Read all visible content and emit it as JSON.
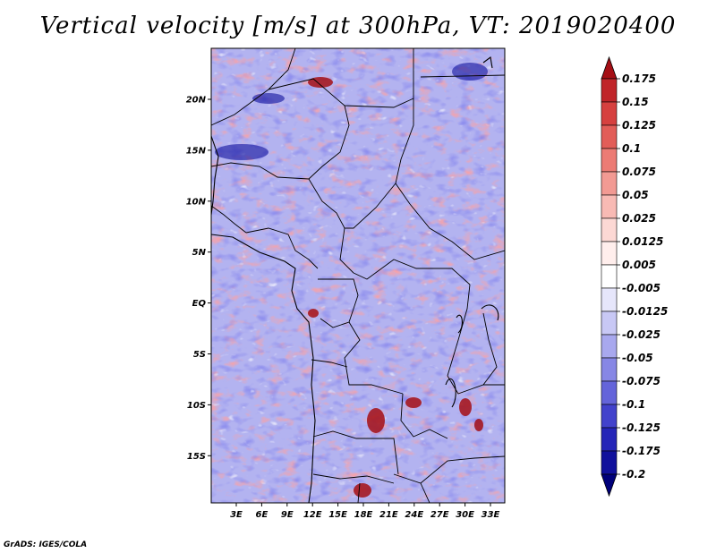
{
  "title": "Vertical velocity [m/s] at 300hPa, VT: 2019020400",
  "credit": "GrADS: IGES/COLA",
  "map": {
    "lat_labels": [
      "20N",
      "15N",
      "10N",
      "5N",
      "EQ",
      "5S",
      "10S",
      "15S"
    ],
    "lon_labels": [
      "3E",
      "6E",
      "9E",
      "12E",
      "15E",
      "18E",
      "21E",
      "24E",
      "27E",
      "30E",
      "33E"
    ]
  },
  "colorbar": {
    "labels": [
      "0.175",
      "0.15",
      "0.125",
      "0.1",
      "0.075",
      "0.05",
      "0.025",
      "0.0125",
      "0.005",
      "-0.005",
      "-0.0125",
      "-0.025",
      "-0.05",
      "-0.075",
      "-0.1",
      "-0.125",
      "-0.175",
      "-0.2"
    ],
    "colors": [
      "#a50f15",
      "#c0252a",
      "#d6403f",
      "#e25d58",
      "#ec7b74",
      "#f29a93",
      "#f8bab4",
      "#fcd8d4",
      "#ffeeec",
      "#ffffff",
      "#e6e6fb",
      "#c8c8f5",
      "#a8a8ee",
      "#8787e5",
      "#6464da",
      "#4242cc",
      "#2525b8",
      "#10109c",
      "#00007a"
    ]
  }
}
